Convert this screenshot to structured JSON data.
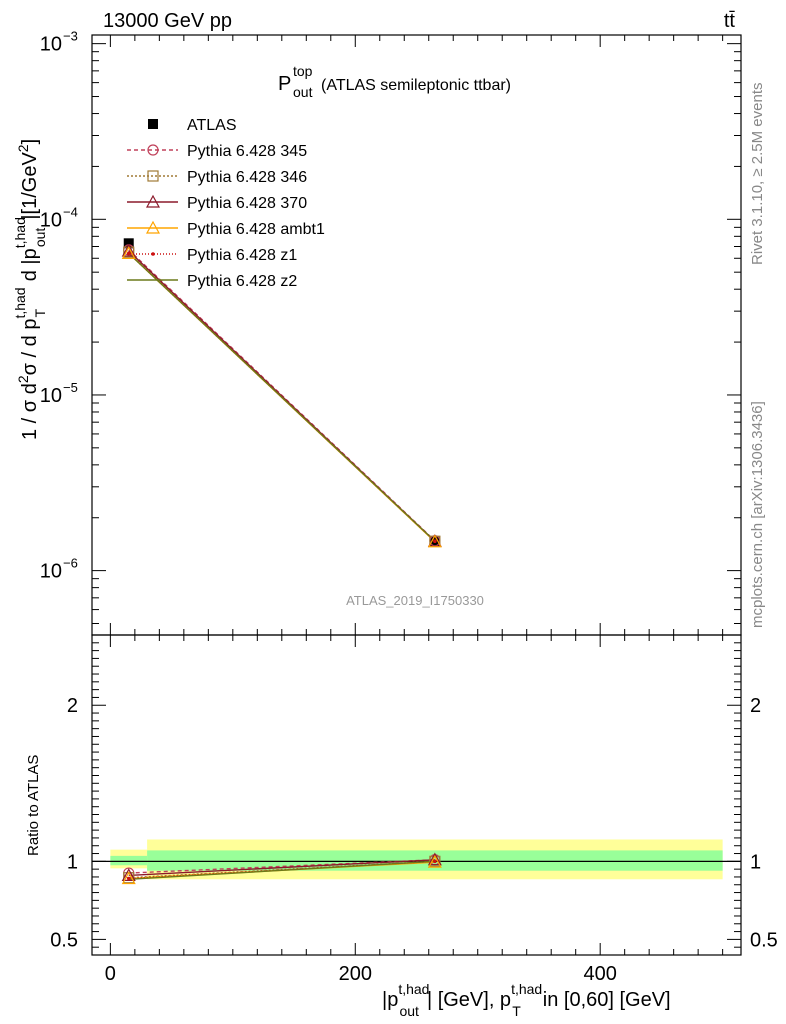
{
  "header": {
    "energy_label": "13000 GeV pp",
    "process_label": "tt̄"
  },
  "side": {
    "rivet_label": "Rivet 3.1.10, ≥ 2.5M events",
    "mcplots_label": "mcplots.cern.ch [arXiv:1306.3436]"
  },
  "colors": {
    "data": "#000000",
    "stat_band": "#99ff99",
    "total_band": "#ffff99"
  },
  "chart_data": [
    {
      "type": "line",
      "title_main": "P",
      "title_sup": "top",
      "title_sub": "out",
      "title_rest": "(ATLAS semileptonic ttbar)",
      "ylabel_text": "1 / σ d²σ / d p_T^{t,had} d |p_out^{t,had}| [1/GeV²]",
      "analysis_label": "ATLAS_2019_I1750330",
      "log_y": true,
      "ylim": [
        4.3e-07,
        0.00112
      ],
      "xlim": [
        -15,
        515
      ],
      "yticks": [
        {
          "value": 1e-06,
          "base": "10",
          "exp": "−6"
        },
        {
          "value": 1e-05,
          "base": "10",
          "exp": "−5"
        },
        {
          "value": 0.0001,
          "base": "10",
          "exp": "−4"
        },
        {
          "value": 0.001,
          "base": "10",
          "exp": "−3"
        }
      ],
      "x": [
        15,
        265
      ],
      "series": [
        {
          "name": "ATLAS",
          "color": "#000000",
          "marker": "square",
          "dash": "",
          "values": [
            7.3e-05,
            1.46e-06
          ]
        },
        {
          "name": "Pythia 6.428 345",
          "color": "#c0405a",
          "marker": "circle",
          "dash": "4,3",
          "values": [
            6.7e-05,
            1.48e-06
          ]
        },
        {
          "name": "Pythia 6.428 346",
          "color": "#a07a35",
          "marker": "square-open",
          "dash": "2,2",
          "values": [
            6.5e-05,
            1.47e-06
          ]
        },
        {
          "name": "Pythia 6.428 370",
          "color": "#8b1a2b",
          "marker": "triangle",
          "dash": "",
          "values": [
            6.6e-05,
            1.47e-06
          ]
        },
        {
          "name": "Pythia 6.428 ambt1",
          "color": "#ffa500",
          "marker": "triangle",
          "dash": "",
          "values": [
            6.4e-05,
            1.46e-06
          ]
        },
        {
          "name": "Pythia 6.428 z1",
          "color": "#cc1111",
          "marker": "dot",
          "dash": "1,2",
          "values": [
            6.4e-05,
            1.47e-06
          ]
        },
        {
          "name": "Pythia 6.428 z2",
          "color": "#6b7a1a",
          "marker": "none",
          "dash": "",
          "values": [
            6.4e-05,
            1.47e-06
          ]
        }
      ]
    },
    {
      "type": "line",
      "ylabel": "Ratio to ATLAS",
      "xlabel_text": "|p_out^{t,had}| [GeV], p_T^{t,had} in [0,60] [GeV]",
      "ylim": [
        0.4,
        2.45
      ],
      "xlim": [
        -15,
        515
      ],
      "xticks": [
        0,
        200,
        400
      ],
      "yticks": [
        0.5,
        1,
        2
      ],
      "reference": 1,
      "bands": [
        {
          "x0": 0,
          "x1": 30,
          "stat": [
            0.975,
            1.035
          ],
          "total": [
            0.955,
            1.075
          ]
        },
        {
          "x0": 30,
          "x1": 500,
          "stat": [
            0.94,
            1.07
          ],
          "total": [
            0.885,
            1.14
          ]
        }
      ],
      "x": [
        15,
        265
      ],
      "series": [
        {
          "name": "Pythia 6.428 345",
          "values": [
            0.925,
            1.01
          ]
        },
        {
          "name": "Pythia 6.428 346",
          "values": [
            0.895,
            1.0
          ]
        },
        {
          "name": "Pythia 6.428 370",
          "values": [
            0.91,
            1.01
          ]
        },
        {
          "name": "Pythia 6.428 ambt1",
          "values": [
            0.89,
            0.995
          ]
        },
        {
          "name": "Pythia 6.428 z1",
          "values": [
            0.89,
            1.0
          ]
        },
        {
          "name": "Pythia 6.428 z2",
          "values": [
            0.885,
            1.0
          ]
        }
      ]
    }
  ]
}
